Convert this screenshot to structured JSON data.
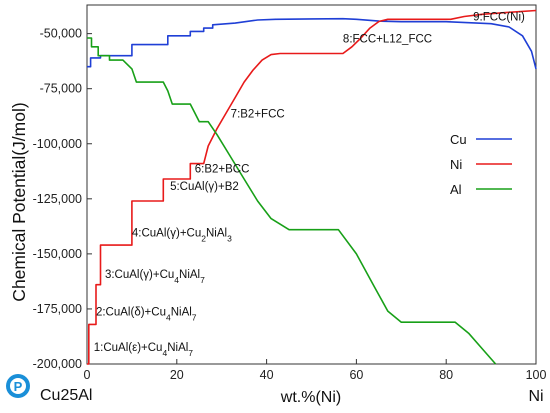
{
  "logo": {
    "name": "Pandat logo",
    "letter": "P",
    "color": "#1a8fd8"
  },
  "system_label": "Cu25Al",
  "corner_label_right": "Ni",
  "chart_data": {
    "type": "line",
    "xlabel": "wt.%(Ni)",
    "ylabel": "Chemical Potential(J/mol)",
    "xlim": [
      0,
      100
    ],
    "ylim": [
      -200000,
      -37000
    ],
    "xticks": [
      0,
      20,
      40,
      60,
      80,
      100
    ],
    "yticks": [
      -200000,
      -175000,
      -150000,
      -125000,
      -100000,
      -75000,
      -50000
    ],
    "ytick_labels": [
      "-200,000",
      "-175,000",
      "-150,000",
      "-125,000",
      "-100,000",
      "-75,000",
      "-50,000"
    ],
    "grid": false,
    "legend_position": "right-middle",
    "series": [
      {
        "name": "Cu",
        "color": "#1f3fd6",
        "points": [
          [
            0,
            -65000
          ],
          [
            0.8,
            -65000
          ],
          [
            0.8,
            -61000
          ],
          [
            3,
            -61000
          ],
          [
            3,
            -60000
          ],
          [
            10,
            -60000
          ],
          [
            10,
            -55000
          ],
          [
            18,
            -55000
          ],
          [
            18,
            -51000
          ],
          [
            23,
            -51000
          ],
          [
            23,
            -49000
          ],
          [
            26,
            -49000
          ],
          [
            26,
            -47500
          ],
          [
            28,
            -47500
          ],
          [
            28,
            -46000
          ],
          [
            33,
            -45200
          ],
          [
            38,
            -43800
          ],
          [
            42,
            -43500
          ],
          [
            50,
            -43300
          ],
          [
            57,
            -43200
          ],
          [
            60,
            -43500
          ],
          [
            65,
            -44300
          ],
          [
            70,
            -44600
          ],
          [
            80,
            -44600
          ],
          [
            90,
            -45500
          ],
          [
            94,
            -47000
          ],
          [
            97,
            -51000
          ],
          [
            99,
            -58000
          ],
          [
            100,
            -66000
          ]
        ]
      },
      {
        "name": "Ni",
        "color": "#e81a1a",
        "points": [
          [
            0,
            -200000
          ],
          [
            0.4,
            -200000
          ],
          [
            0.4,
            -182000
          ],
          [
            2,
            -182000
          ],
          [
            2,
            -164000
          ],
          [
            3,
            -164000
          ],
          [
            3,
            -146000
          ],
          [
            10,
            -146000
          ],
          [
            10,
            -126000
          ],
          [
            17,
            -126000
          ],
          [
            17,
            -116000
          ],
          [
            23,
            -116000
          ],
          [
            23,
            -109000
          ],
          [
            26,
            -109000
          ],
          [
            27,
            -101000
          ],
          [
            29,
            -93000
          ],
          [
            31,
            -86000
          ],
          [
            33,
            -79000
          ],
          [
            35,
            -72000
          ],
          [
            37,
            -66500
          ],
          [
            39,
            -62000
          ],
          [
            41,
            -59500
          ],
          [
            43,
            -59000
          ],
          [
            57,
            -59000
          ],
          [
            59,
            -56000
          ],
          [
            61,
            -52000
          ],
          [
            63,
            -47500
          ],
          [
            65,
            -44500
          ],
          [
            67,
            -43500
          ],
          [
            81,
            -43500
          ],
          [
            84,
            -42200
          ],
          [
            88,
            -41200
          ],
          [
            94,
            -40300
          ],
          [
            100,
            -39500
          ]
        ]
      },
      {
        "name": "Al",
        "color": "#18a018",
        "points": [
          [
            0,
            -52000
          ],
          [
            1,
            -52000
          ],
          [
            1,
            -56000
          ],
          [
            2.5,
            -56000
          ],
          [
            2.5,
            -60000
          ],
          [
            5,
            -60000
          ],
          [
            5,
            -62000
          ],
          [
            8,
            -62000
          ],
          [
            10,
            -66000
          ],
          [
            11,
            -72000
          ],
          [
            17,
            -72000
          ],
          [
            18,
            -76000
          ],
          [
            19,
            -82000
          ],
          [
            23,
            -82000
          ],
          [
            24,
            -86000
          ],
          [
            25,
            -90000
          ],
          [
            27,
            -90000
          ],
          [
            29,
            -96000
          ],
          [
            32,
            -106000
          ],
          [
            35,
            -116000
          ],
          [
            38,
            -126000
          ],
          [
            41,
            -134000
          ],
          [
            45,
            -139000
          ],
          [
            56,
            -139000
          ],
          [
            60,
            -150000
          ],
          [
            64,
            -165000
          ],
          [
            67,
            -176000
          ],
          [
            70,
            -181000
          ],
          [
            82,
            -181000
          ],
          [
            85,
            -186000
          ],
          [
            88,
            -193000
          ],
          [
            91,
            -200000
          ]
        ]
      }
    ],
    "annotations": [
      {
        "label": "9:FCC(Ni)",
        "x": 86,
        "y": -44000
      },
      {
        "label": "8:FCC+L12_FCC",
        "x": 57,
        "y": -54000
      },
      {
        "label": "7:B2+FCC",
        "x": 32,
        "y": -88000
      },
      {
        "label": "6:B2+BCC",
        "x": 24,
        "y": -113000
      },
      {
        "label": "5:CuAl(γ)+B2",
        "x": 18.5,
        "y": -121000
      },
      {
        "label": "4:CuAl(γ)+Cu₂NiAl₃",
        "x": 10,
        "y": -142000
      },
      {
        "label": "3:CuAl(γ)+Cu₄NiAl₇",
        "x": 4,
        "y": -161000
      },
      {
        "label": "2:CuAl(δ)+Cu₄NiAl₇",
        "x": 2,
        "y": -178000
      },
      {
        "label": "1:CuAl(ε)+Cu₄NiAl₇",
        "x": 1.5,
        "y": -194000
      }
    ]
  }
}
